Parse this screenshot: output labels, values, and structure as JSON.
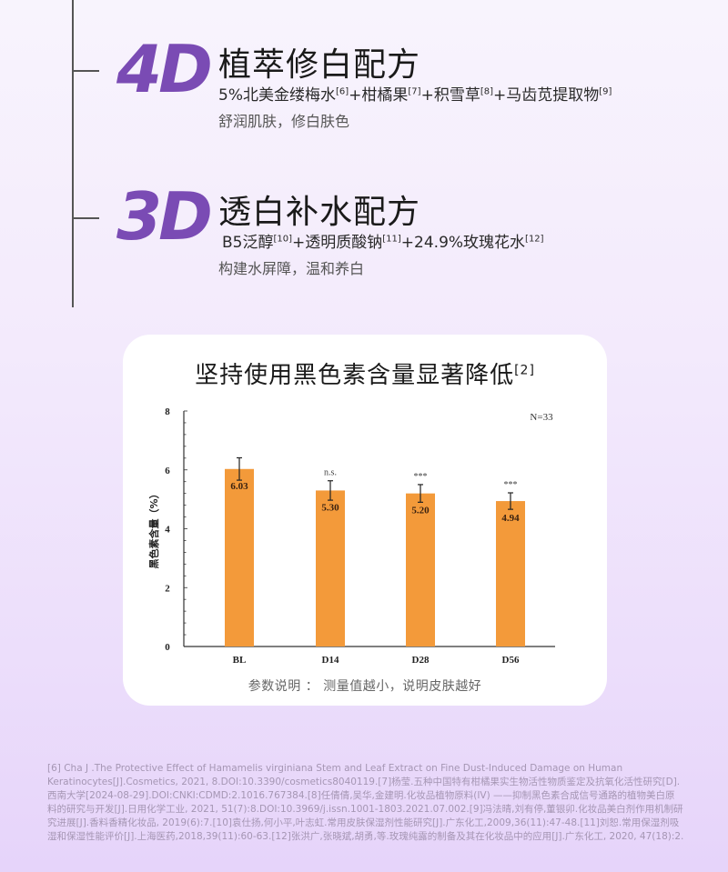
{
  "features": [
    {
      "badge": "4D",
      "title": "植萃修白配方",
      "ingredients": [
        {
          "text": "5%北美金缕梅水",
          "ref": "[6]"
        },
        {
          "text": "+柑橘果",
          "ref": "[7]"
        },
        {
          "text": "+积雪草",
          "ref": "[8]"
        },
        {
          "text": "+马齿苋提取物",
          "ref": "[9]"
        }
      ],
      "benefit": "舒润肌肤，修白肤色"
    },
    {
      "badge": "3D",
      "title": "透白补水配方",
      "ingredients": [
        {
          "text": "B5泛醇",
          "ref": "[10]"
        },
        {
          "text": "+透明质酸钠",
          "ref": "[11]"
        },
        {
          "text": "+24.9%玫瑰花水",
          "ref": "[12]"
        }
      ],
      "benefit": "构建水屏障，温和养白"
    }
  ],
  "card": {
    "title": "坚持使用黑色素含量显著降低",
    "title_ref": "[2]",
    "note": "参数说明 ：  测量值越小，说明皮肤越好"
  },
  "chart_data": {
    "type": "bar",
    "title": "坚持使用黑色素含量显著降低",
    "categories": [
      "BL",
      "D14",
      "D28",
      "D56"
    ],
    "values": [
      6.03,
      5.3,
      5.2,
      4.94
    ],
    "error": [
      0.38,
      0.33,
      0.3,
      0.28
    ],
    "significance": [
      "",
      "n.s.",
      "***",
      "***"
    ],
    "xlabel": "",
    "ylabel": "黑色素含量（%）",
    "ylim": [
      0,
      8
    ],
    "yticks": [
      0,
      2,
      4,
      6,
      8
    ],
    "annotation": "N=33",
    "bar_color": "#f39a3a",
    "grid": false
  },
  "references": "[6] Cha J .The Protective Effect of Hamamelis virginiana Stem and Leaf Extract on Fine Dust-Induced Damage on Human Keratinocytes[J].Cosmetics, 2021, 8.DOI:10.3390/cosmetics8040119.[7]杨莹.五种中国特有柑橘果实生物活性物质鉴定及抗氧化活性研究[D].西南大学[2024-08-29].DOI:CNKI:CDMD:2.1016.767384.[8]任倩倩,吴华,金建明.化妆品植物原料(IV) ——抑制黑色素合成信号通路的植物美白原料的研究与开发[J].日用化学工业, 2021, 51(7):8.DOI:10.3969/j.issn.1001-1803.2021.07.002.[9]冯法晴,刘有停,董银卯.化妆品美白剂作用机制研究进展[J].香料香精化妆品, 2019(6):7.[10]袁仕扬,何小平,叶志虹.常用皮肤保湿剂性能研究[J].广东化工,2009,36(11):47-48.[11]刘恕.常用保湿剂吸湿和保湿性能评价[J].上海医药,2018,39(11):60-63.[12]张洪广,张晓斌,胡勇,等.玫瑰纯露的制备及其在化妆品中的应用[J].广东化工, 2020, 47(18):2."
}
